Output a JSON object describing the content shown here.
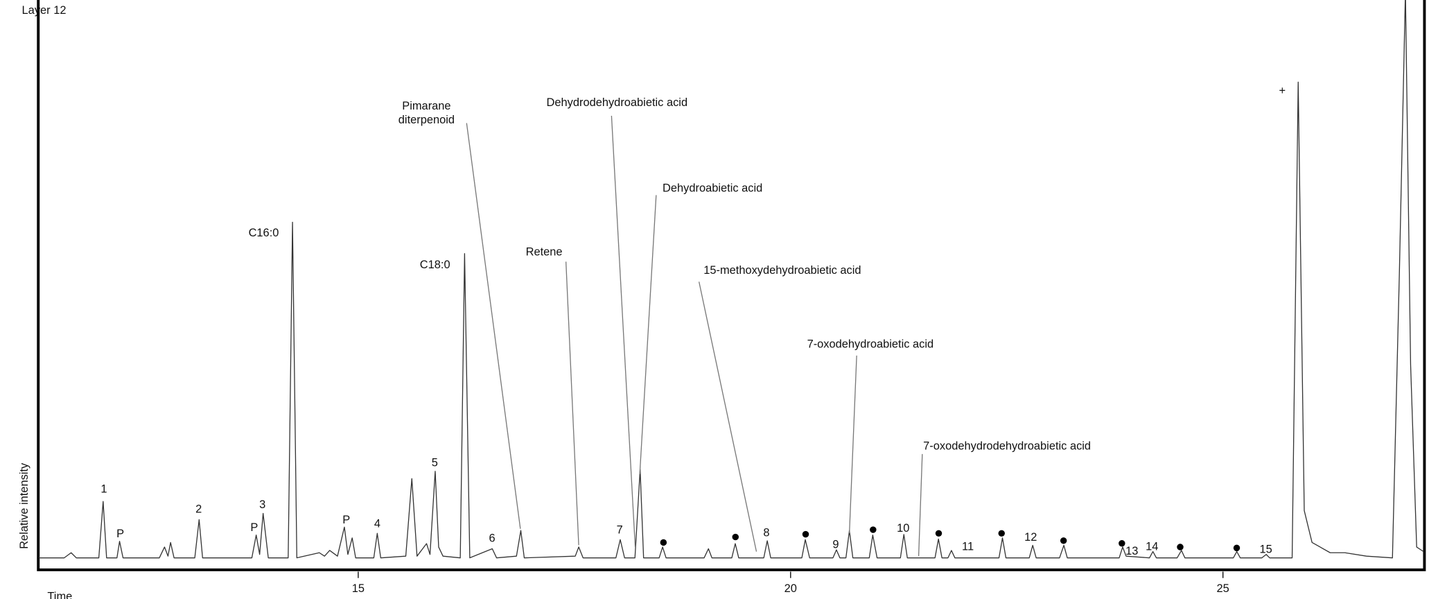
{
  "chart_data": {
    "type": "line",
    "title": "Layer 12",
    "x_label": "Time",
    "y_label": "Relative intensity",
    "xlim": [
      11.3,
      27.33
    ],
    "xticks": [
      15,
      20,
      25
    ],
    "ylim": [
      0,
      100
    ],
    "color": "#333333",
    "x": [
      11.3,
      11.6,
      11.68,
      11.74,
      12.0,
      12.05,
      12.09,
      12.21,
      12.24,
      12.28,
      12.7,
      12.76,
      12.8,
      12.83,
      12.87,
      13.11,
      13.16,
      13.2,
      13.77,
      13.82,
      13.86,
      13.9,
      13.96,
      14.19,
      14.24,
      14.29,
      14.55,
      14.61,
      14.67,
      14.76,
      14.84,
      14.88,
      14.93,
      14.97,
      15.18,
      15.22,
      15.26,
      15.55,
      15.62,
      15.68,
      15.79,
      15.83,
      15.89,
      15.93,
      15.98,
      16.18,
      16.23,
      16.29,
      16.55,
      16.6,
      16.83,
      16.88,
      16.92,
      17.51,
      17.55,
      17.6,
      17.98,
      18.03,
      18.08,
      18.2,
      18.26,
      18.3,
      18.48,
      18.52,
      18.56,
      19.0,
      19.05,
      19.09,
      19.32,
      19.36,
      19.4,
      19.69,
      19.73,
      19.77,
      20.13,
      20.17,
      20.22,
      20.49,
      20.53,
      20.57,
      20.64,
      20.68,
      20.72,
      20.91,
      20.95,
      21.0,
      21.27,
      21.31,
      21.35,
      21.67,
      21.71,
      21.75,
      21.82,
      21.86,
      21.9,
      22.41,
      22.45,
      22.49,
      22.76,
      22.8,
      22.84,
      23.11,
      23.16,
      23.2,
      23.8,
      23.84,
      23.88,
      24.15,
      24.19,
      24.23,
      24.47,
      24.52,
      24.56,
      25.12,
      25.16,
      25.2,
      25.45,
      25.5,
      25.54,
      25.8,
      25.87,
      25.94,
      26.03,
      26.24,
      26.41,
      26.66,
      26.96,
      27.04,
      27.11,
      27.17,
      27.24,
      27.32
    ],
    "values": [
      2.1,
      2.1,
      3.0,
      2.1,
      2.1,
      12.0,
      2.1,
      2.1,
      5.0,
      2.1,
      2.1,
      4.0,
      2.4,
      4.8,
      2.1,
      2.1,
      8.8,
      2.1,
      2.1,
      6.1,
      2.7,
      9.9,
      2.1,
      2.1,
      61.0,
      2.1,
      3.0,
      2.4,
      3.4,
      2.4,
      7.5,
      2.7,
      5.6,
      2.1,
      2.1,
      6.4,
      2.1,
      2.4,
      16.0,
      2.4,
      4.6,
      2.7,
      17.3,
      4.0,
      2.4,
      2.1,
      55.5,
      2.1,
      3.7,
      2.1,
      2.4,
      6.9,
      2.1,
      2.4,
      4.0,
      2.1,
      2.1,
      5.3,
      2.1,
      2.1,
      17.6,
      2.1,
      2.1,
      4.0,
      2.1,
      2.1,
      3.7,
      2.1,
      2.1,
      4.6,
      2.1,
      2.1,
      5.1,
      2.1,
      2.1,
      5.3,
      2.1,
      2.1,
      3.5,
      2.1,
      2.1,
      6.9,
      2.1,
      2.1,
      6.1,
      2.1,
      2.1,
      6.2,
      2.1,
      2.1,
      5.4,
      2.1,
      2.1,
      3.4,
      2.1,
      2.1,
      5.6,
      2.1,
      2.1,
      4.3,
      2.1,
      2.1,
      4.3,
      2.1,
      2.1,
      4.0,
      2.4,
      2.1,
      3.2,
      2.1,
      2.1,
      3.4,
      2.1,
      2.1,
      3.2,
      2.1,
      2.1,
      2.7,
      2.1,
      2.1,
      85.6,
      10.4,
      4.8,
      3.0,
      3.0,
      2.4,
      2.1,
      52.0,
      101.6,
      36.0,
      4.0,
      3.2
    ],
    "peak_labels": [
      "1",
      "P",
      "2",
      "P",
      "3",
      "C16:0",
      "P",
      "4",
      "5",
      "C18:0",
      "6",
      "7",
      "8",
      "9",
      "10",
      "11",
      "12",
      "13",
      "14",
      "15",
      "+"
    ],
    "compound_labels": [
      [
        "Pimarane",
        "diterpenoid"
      ],
      [
        "Dehydrodehydroabietic acid"
      ],
      [
        "Dehydroabietic acid"
      ],
      [
        "Retene"
      ],
      [
        "15-methoxydehydroabietic acid"
      ],
      [
        "7-oxodehydroabietic acid"
      ],
      [
        "7-oxodehydrodehydroabietic acid"
      ]
    ]
  }
}
